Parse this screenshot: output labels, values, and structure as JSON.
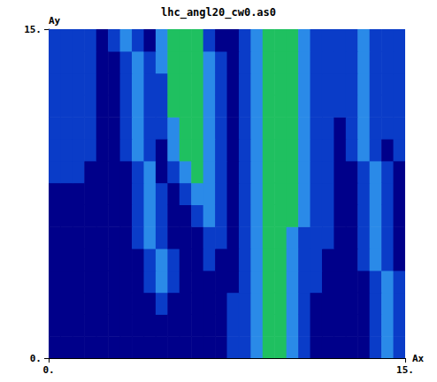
{
  "chart_data": {
    "type": "heatmap",
    "title": "lhc_angl20_cw0.as0",
    "x_label": "Ax",
    "y_label": "Ay",
    "xlim": [
      0,
      15
    ],
    "ylim": [
      0,
      15
    ],
    "xticks": [
      {
        "value": 0,
        "label": "0."
      },
      {
        "value": 15,
        "label": "15."
      }
    ],
    "yticks": [
      {
        "value": 0,
        "label": "0."
      },
      {
        "value": 15,
        "label": "15."
      }
    ],
    "value_range": [
      0,
      3
    ],
    "cells": {
      "x": [
        0.25,
        0.75,
        1.25,
        1.75,
        2.25,
        2.75,
        3.25,
        3.75,
        4.25,
        4.75,
        5.25,
        5.75,
        6.25,
        6.75,
        7.25,
        7.75,
        8.25,
        8.75,
        9.25,
        9.75,
        10.25,
        10.75,
        11.25,
        11.75,
        12.25,
        12.75,
        13.25,
        13.75,
        14.25,
        14.75
      ],
      "y": [
        0.5,
        1.5,
        2.5,
        3.5,
        4.5,
        5.5,
        6.5,
        7.5,
        8.5,
        9.5,
        10.5,
        11.5,
        12.5,
        13.5,
        14.5
      ],
      "values": [
        [
          0,
          0,
          0,
          0,
          0,
          0,
          0,
          0,
          0,
          0,
          0,
          0,
          0,
          0,
          0,
          1,
          1,
          2,
          3,
          3,
          2,
          1,
          0,
          0,
          0,
          0,
          0,
          1,
          2,
          1
        ],
        [
          0,
          0,
          0,
          0,
          0,
          0,
          0,
          0,
          0,
          0,
          0,
          0,
          0,
          0,
          0,
          1,
          1,
          2,
          3,
          3,
          2,
          1,
          0,
          0,
          0,
          0,
          0,
          1,
          2,
          1
        ],
        [
          0,
          0,
          0,
          0,
          0,
          0,
          0,
          0,
          0,
          1,
          0,
          0,
          0,
          0,
          0,
          1,
          1,
          2,
          3,
          3,
          2,
          1,
          0,
          0,
          0,
          0,
          0,
          1,
          2,
          1
        ],
        [
          0,
          0,
          0,
          0,
          0,
          0,
          0,
          0,
          1,
          2,
          1,
          0,
          0,
          0,
          0,
          0,
          1,
          2,
          3,
          3,
          2,
          1,
          1,
          0,
          0,
          0,
          0,
          1,
          2,
          1
        ],
        [
          0,
          0,
          0,
          0,
          0,
          0,
          0,
          0,
          1,
          2,
          1,
          0,
          0,
          1,
          0,
          0,
          1,
          2,
          3,
          3,
          2,
          1,
          1,
          0,
          0,
          0,
          1,
          2,
          1,
          0
        ],
        [
          0,
          0,
          0,
          0,
          0,
          0,
          0,
          1,
          2,
          1,
          0,
          0,
          0,
          1,
          1,
          0,
          1,
          2,
          3,
          3,
          2,
          1,
          1,
          1,
          0,
          0,
          1,
          2,
          1,
          0
        ],
        [
          0,
          0,
          0,
          0,
          0,
          0,
          0,
          1,
          2,
          1,
          0,
          0,
          1,
          2,
          1,
          0,
          1,
          2,
          3,
          3,
          3,
          2,
          1,
          1,
          0,
          0,
          1,
          2,
          1,
          0
        ],
        [
          0,
          0,
          0,
          0,
          0,
          0,
          0,
          1,
          2,
          1,
          0,
          1,
          2,
          2,
          1,
          0,
          1,
          2,
          3,
          3,
          3,
          2,
          1,
          1,
          0,
          0,
          1,
          2,
          1,
          0
        ],
        [
          1,
          1,
          1,
          0,
          0,
          0,
          0,
          1,
          2,
          0,
          1,
          2,
          3,
          2,
          1,
          0,
          1,
          2,
          3,
          3,
          3,
          2,
          1,
          1,
          0,
          0,
          1,
          2,
          1,
          0
        ],
        [
          1,
          1,
          1,
          1,
          0,
          0,
          1,
          2,
          1,
          0,
          2,
          3,
          3,
          2,
          1,
          0,
          1,
          2,
          3,
          3,
          3,
          2,
          1,
          1,
          0,
          1,
          2,
          1,
          0,
          1
        ],
        [
          1,
          1,
          1,
          1,
          0,
          0,
          1,
          2,
          1,
          1,
          2,
          3,
          3,
          2,
          1,
          0,
          1,
          2,
          3,
          3,
          3,
          2,
          1,
          1,
          0,
          1,
          2,
          1,
          1,
          1
        ],
        [
          1,
          1,
          1,
          1,
          0,
          0,
          1,
          2,
          1,
          1,
          3,
          3,
          3,
          2,
          1,
          0,
          1,
          2,
          3,
          3,
          3,
          2,
          1,
          1,
          1,
          1,
          2,
          1,
          1,
          1
        ],
        [
          1,
          1,
          1,
          1,
          0,
          0,
          1,
          2,
          1,
          1,
          3,
          3,
          3,
          2,
          1,
          0,
          1,
          2,
          3,
          3,
          3,
          2,
          1,
          1,
          1,
          1,
          2,
          1,
          1,
          1
        ],
        [
          1,
          1,
          1,
          1,
          0,
          0,
          1,
          2,
          1,
          2,
          3,
          3,
          3,
          2,
          1,
          0,
          1,
          2,
          3,
          3,
          3,
          2,
          1,
          1,
          1,
          1,
          2,
          1,
          1,
          1
        ],
        [
          1,
          1,
          1,
          1,
          0,
          1,
          2,
          1,
          0,
          2,
          3,
          3,
          3,
          1,
          0,
          0,
          1,
          2,
          3,
          3,
          3,
          2,
          1,
          1,
          1,
          1,
          2,
          1,
          1,
          1
        ]
      ]
    }
  }
}
